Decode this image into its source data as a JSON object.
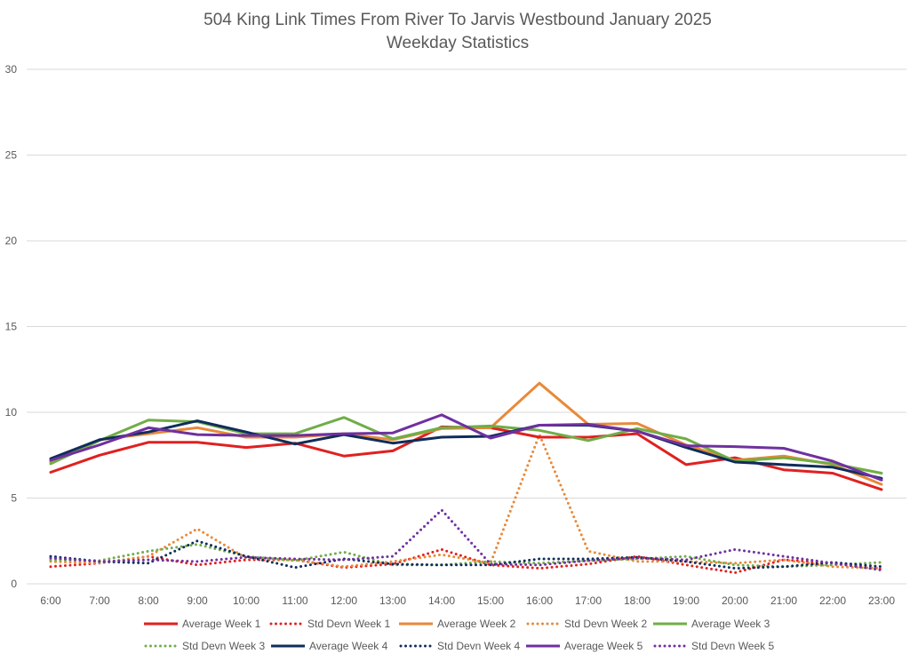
{
  "chart_data": {
    "type": "line",
    "title": "504 King Link Times From River To Jarvis Westbound January 2025",
    "subtitle": "Weekday Statistics",
    "xlabel": "",
    "ylabel": "",
    "ylim": [
      0,
      30
    ],
    "yticks": [
      "0",
      "5",
      "10",
      "15",
      "20",
      "25",
      "30"
    ],
    "grid": true,
    "legend_position": "bottom",
    "categories": [
      "6:00",
      "7:00",
      "8:00",
      "9:00",
      "10:00",
      "11:00",
      "12:00",
      "13:00",
      "14:00",
      "15:00",
      "16:00",
      "17:00",
      "18:00",
      "19:00",
      "20:00",
      "21:00",
      "22:00",
      "23:00"
    ],
    "series": [
      {
        "name": "Average Week 1",
        "color": "#e02020",
        "style": "solid",
        "values": [
          6.5,
          7.5,
          8.25,
          8.25,
          7.95,
          8.2,
          7.45,
          7.75,
          9.15,
          9.1,
          8.55,
          8.55,
          8.75,
          6.95,
          7.35,
          6.65,
          6.45,
          5.5
        ]
      },
      {
        "name": "Std Devn Week 1",
        "color": "#e02020",
        "style": "dotted",
        "values": [
          1.0,
          1.2,
          1.6,
          1.1,
          1.4,
          1.4,
          0.95,
          1.15,
          2.0,
          1.1,
          0.9,
          1.15,
          1.6,
          1.1,
          0.65,
          1.4,
          1.2,
          0.85
        ]
      },
      {
        "name": "Average Week 2",
        "color": "#e8893a",
        "style": "solid",
        "values": [
          7.1,
          8.4,
          8.75,
          9.1,
          8.55,
          8.55,
          8.75,
          8.4,
          9.05,
          9.1,
          11.7,
          9.3,
          9.35,
          8.1,
          7.2,
          7.45,
          6.95,
          5.8
        ]
      },
      {
        "name": "Std Devn Week 2",
        "color": "#e8893a",
        "style": "dotted",
        "values": [
          1.3,
          1.2,
          1.6,
          3.2,
          1.5,
          1.4,
          1.0,
          1.3,
          1.7,
          1.2,
          8.7,
          1.9,
          1.3,
          1.3,
          1.2,
          1.4,
          1.0,
          0.9
        ]
      },
      {
        "name": "Average Week 3",
        "color": "#70ad47",
        "style": "solid",
        "values": [
          7.0,
          8.35,
          9.55,
          9.45,
          8.75,
          8.75,
          9.7,
          8.45,
          9.1,
          9.2,
          8.95,
          8.35,
          9.05,
          8.45,
          7.15,
          7.35,
          7.0,
          6.45
        ]
      },
      {
        "name": "Std Devn Week 3",
        "color": "#70ad47",
        "style": "dotted",
        "values": [
          1.4,
          1.35,
          1.9,
          2.3,
          1.6,
          1.35,
          1.85,
          1.1,
          1.1,
          1.3,
          1.2,
          1.35,
          1.45,
          1.6,
          1.1,
          1.0,
          1.1,
          1.25
        ]
      },
      {
        "name": "Average Week 4",
        "color": "#0f2d5c",
        "style": "solid",
        "values": [
          7.3,
          8.4,
          8.85,
          9.5,
          8.85,
          8.15,
          8.7,
          8.2,
          8.55,
          8.6,
          9.25,
          9.25,
          8.9,
          7.95,
          7.1,
          6.95,
          6.8,
          6.15
        ]
      },
      {
        "name": "Std Devn Week 4",
        "color": "#0f2d5c",
        "style": "dotted",
        "values": [
          1.6,
          1.3,
          1.2,
          2.5,
          1.6,
          0.95,
          1.45,
          1.15,
          1.1,
          1.1,
          1.45,
          1.45,
          1.55,
          1.3,
          0.9,
          1.0,
          1.25,
          1.0
        ]
      },
      {
        "name": "Average Week 5",
        "color": "#7030a0",
        "style": "solid",
        "values": [
          7.2,
          8.1,
          9.1,
          8.7,
          8.65,
          8.65,
          8.75,
          8.8,
          9.85,
          8.5,
          9.25,
          9.3,
          8.9,
          8.05,
          8.0,
          7.9,
          7.15,
          6.05
        ]
      },
      {
        "name": "Std Devn Week 5",
        "color": "#7030a0",
        "style": "dotted",
        "values": [
          1.5,
          1.3,
          1.4,
          1.3,
          1.55,
          1.45,
          1.4,
          1.6,
          4.3,
          1.15,
          1.1,
          1.35,
          1.5,
          1.4,
          2.0,
          1.6,
          1.2,
          0.8
        ]
      }
    ]
  }
}
